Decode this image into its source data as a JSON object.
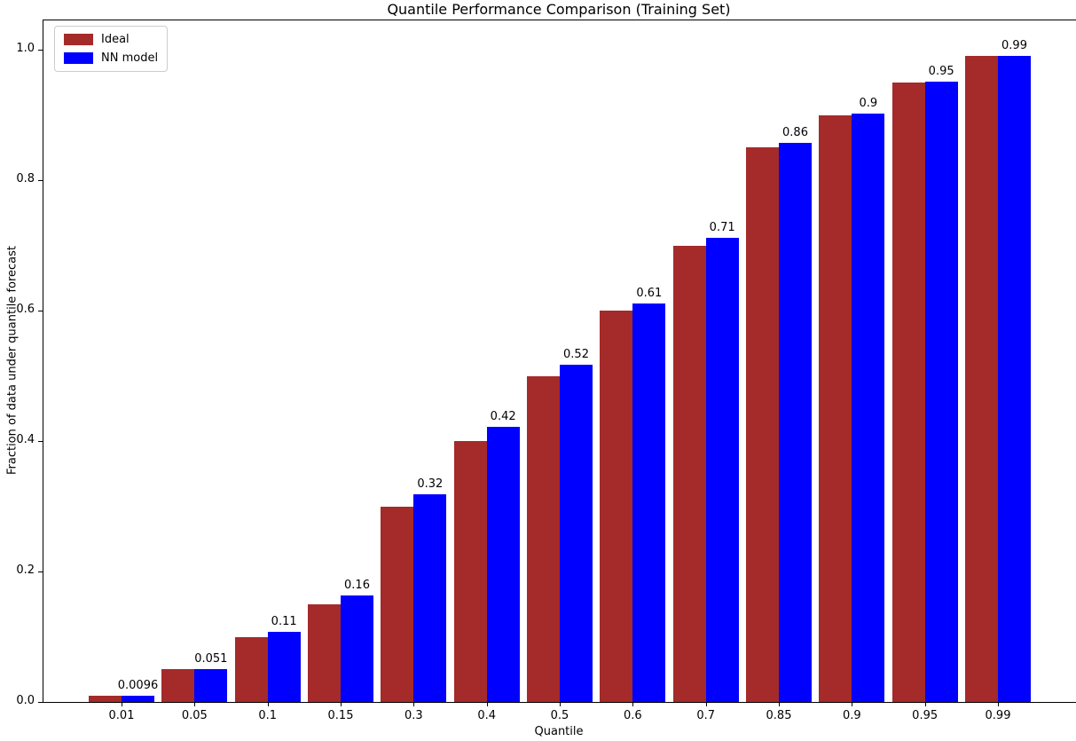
{
  "chart_data": {
    "type": "bar",
    "title": "Quantile Performance Comparison (Training Set)",
    "xlabel": "Quantile",
    "ylabel": "Fraction of data under quantile forecast",
    "categories": [
      "0.01",
      "0.05",
      "0.1",
      "0.15",
      "0.3",
      "0.4",
      "0.5",
      "0.6",
      "0.7",
      "0.85",
      "0.9",
      "0.95",
      "0.99"
    ],
    "series": [
      {
        "name": "Ideal",
        "color": "#A52A2A",
        "values": [
          0.01,
          0.05,
          0.1,
          0.15,
          0.3,
          0.4,
          0.5,
          0.6,
          0.7,
          0.85,
          0.9,
          0.95,
          0.99
        ]
      },
      {
        "name": "NN model",
        "color": "#0000FF",
        "values": [
          0.0096,
          0.051,
          0.108,
          0.163,
          0.318,
          0.422,
          0.517,
          0.611,
          0.712,
          0.857,
          0.902,
          0.951,
          0.99
        ]
      }
    ],
    "bar_labels": [
      "0.0096",
      "0.051",
      "0.11",
      "0.16",
      "0.32",
      "0.42",
      "0.52",
      "0.61",
      "0.71",
      "0.86",
      "0.9",
      "0.95",
      "0.99"
    ],
    "yticks": {
      "values": [
        0,
        0.2,
        0.4,
        0.6,
        0.8,
        1.0
      ],
      "labels": [
        "0.0",
        "0.2",
        "0.4",
        "0.6",
        "0.8",
        "1.0"
      ]
    },
    "ylim": [
      0,
      1.045
    ],
    "grid": false,
    "legend": {
      "position": "upper left",
      "entries": [
        "Ideal",
        "NN model"
      ]
    },
    "background": "#ffffff"
  }
}
